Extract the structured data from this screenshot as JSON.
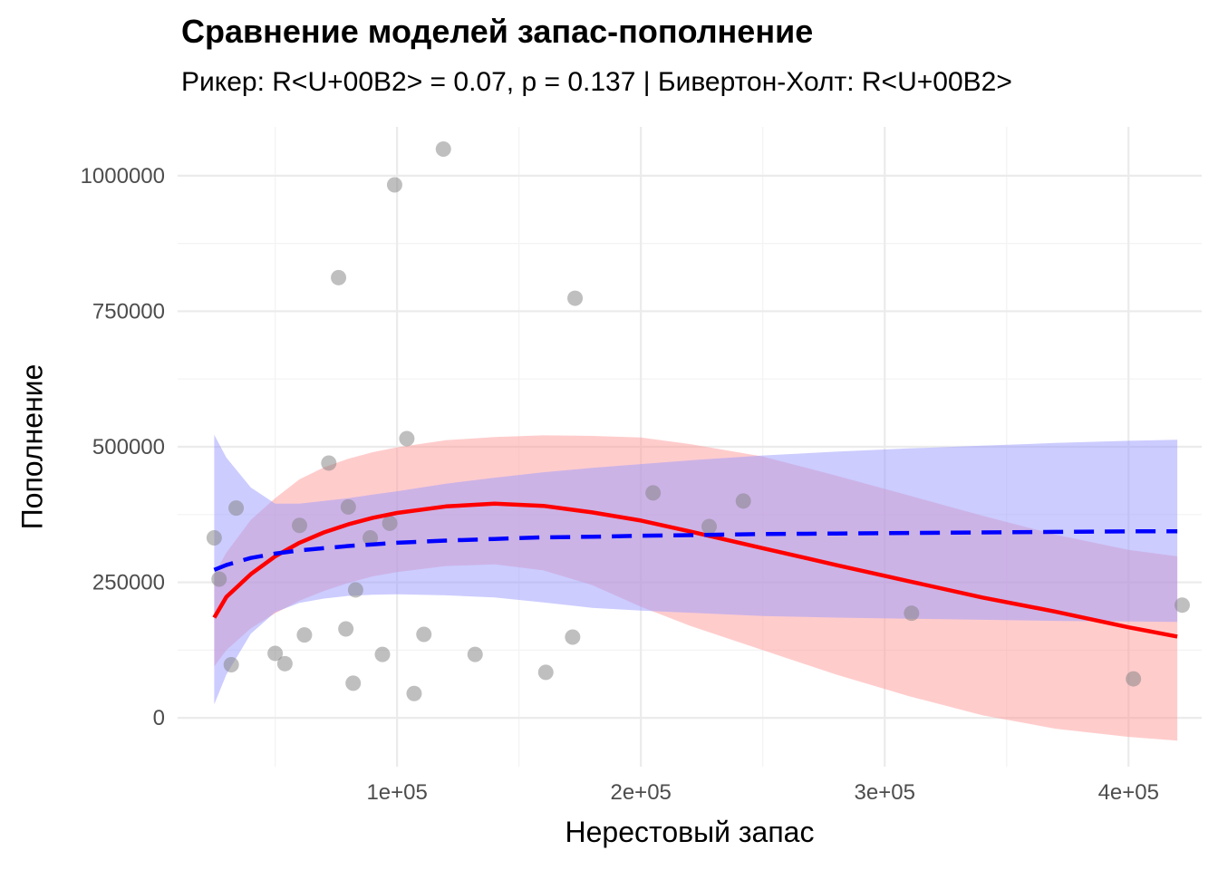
{
  "title": "Сравнение моделей запас-пополнение",
  "subtitle": "Рикер: R<U+00B2> = 0.07, p = 0.137 | Бивертон-Холт: R<U+00B2>",
  "colors": {
    "points": "#7f7f7f",
    "ricker": "#ff0000",
    "ricker_band": "#ff9999",
    "bh": "#0000ff",
    "bh_band": "#9999ff",
    "grid_major": "#ebebeb",
    "grid_minor": "#f3f3f3",
    "tick_text": "#4d4d4d"
  },
  "chart_data": {
    "type": "scatter",
    "xlabel": "Нерестовый запас",
    "ylabel": "Пополнение",
    "xlim": [
      10000,
      430000
    ],
    "ylim": [
      -90000,
      1090000
    ],
    "x_ticks": [
      100000,
      200000,
      300000,
      400000
    ],
    "x_tick_labels": [
      "1e+05",
      "2e+05",
      "3e+05",
      "4e+05"
    ],
    "y_ticks": [
      0,
      250000,
      500000,
      750000,
      1000000
    ],
    "y_tick_labels": [
      "0",
      "250000",
      "500000",
      "750000",
      "1000000"
    ],
    "grid": true,
    "points": [
      {
        "x": 25000,
        "y": 332000
      },
      {
        "x": 27000,
        "y": 256000
      },
      {
        "x": 32000,
        "y": 98000
      },
      {
        "x": 34000,
        "y": 387000
      },
      {
        "x": 50000,
        "y": 119000
      },
      {
        "x": 54000,
        "y": 100000
      },
      {
        "x": 60000,
        "y": 355000
      },
      {
        "x": 62000,
        "y": 153000
      },
      {
        "x": 72000,
        "y": 470000
      },
      {
        "x": 76000,
        "y": 812000
      },
      {
        "x": 79000,
        "y": 164000
      },
      {
        "x": 80000,
        "y": 389000
      },
      {
        "x": 82000,
        "y": 64000
      },
      {
        "x": 83000,
        "y": 236000
      },
      {
        "x": 89000,
        "y": 332000
      },
      {
        "x": 94000,
        "y": 117000
      },
      {
        "x": 97000,
        "y": 359000
      },
      {
        "x": 99000,
        "y": 983000
      },
      {
        "x": 104000,
        "y": 515000
      },
      {
        "x": 107000,
        "y": 45000
      },
      {
        "x": 111000,
        "y": 154000
      },
      {
        "x": 119000,
        "y": 1049000
      },
      {
        "x": 132000,
        "y": 117000
      },
      {
        "x": 161000,
        "y": 84000
      },
      {
        "x": 172000,
        "y": 149000
      },
      {
        "x": 173000,
        "y": 774000
      },
      {
        "x": 205000,
        "y": 415000
      },
      {
        "x": 228000,
        "y": 353000
      },
      {
        "x": 242000,
        "y": 400000
      },
      {
        "x": 311000,
        "y": 193000
      },
      {
        "x": 402000,
        "y": 72000
      },
      {
        "x": 422000,
        "y": 208000
      }
    ],
    "series": [
      {
        "name": "Рикер",
        "x": [
          25000,
          30000,
          40000,
          50000,
          60000,
          70000,
          80000,
          90000,
          100000,
          120000,
          140000,
          160000,
          180000,
          200000,
          220000,
          250000,
          280000,
          310000,
          340000,
          370000,
          400000,
          420000
        ],
        "y": [
          185000,
          223000,
          265000,
          298000,
          323000,
          342000,
          357000,
          369000,
          378000,
          390000,
          395000,
          391000,
          379000,
          364000,
          344000,
          313000,
          282000,
          252000,
          222000,
          196000,
          167000,
          150000
        ],
        "lower": [
          95000,
          125000,
          165000,
          193000,
          216000,
          234000,
          249000,
          261000,
          269000,
          280000,
          283000,
          272000,
          245000,
          205000,
          170000,
          125000,
          80000,
          40000,
          5000,
          -20000,
          -35000,
          -42000
        ],
        "upper": [
          265000,
          305000,
          365000,
          405000,
          440000,
          462000,
          478000,
          490000,
          499000,
          512000,
          518000,
          521000,
          520000,
          517000,
          505000,
          482000,
          447000,
          410000,
          373000,
          338000,
          310000,
          298000
        ]
      },
      {
        "name": "Бивертон-Холт",
        "x": [
          25000,
          30000,
          40000,
          50000,
          60000,
          70000,
          80000,
          90000,
          100000,
          120000,
          140000,
          160000,
          180000,
          200000,
          220000,
          250000,
          280000,
          310000,
          340000,
          370000,
          400000,
          420000
        ],
        "y": [
          273000,
          282000,
          295000,
          303000,
          309000,
          313000,
          317000,
          320000,
          323000,
          327000,
          330000,
          333000,
          334000,
          336000,
          337000,
          339000,
          340000,
          341000,
          342000,
          343000,
          344000,
          344000
        ],
        "lower": [
          25000,
          80000,
          155000,
          195000,
          212000,
          220000,
          225000,
          227000,
          228000,
          226000,
          222000,
          213000,
          203000,
          198000,
          194000,
          188000,
          185000,
          183000,
          181000,
          179000,
          178000,
          177000
        ],
        "upper": [
          522000,
          480000,
          425000,
          395000,
          395000,
          400000,
          405000,
          412000,
          418000,
          432000,
          443000,
          453000,
          461000,
          468000,
          475000,
          484000,
          491000,
          497000,
          502000,
          507000,
          511000,
          513000
        ]
      }
    ]
  }
}
